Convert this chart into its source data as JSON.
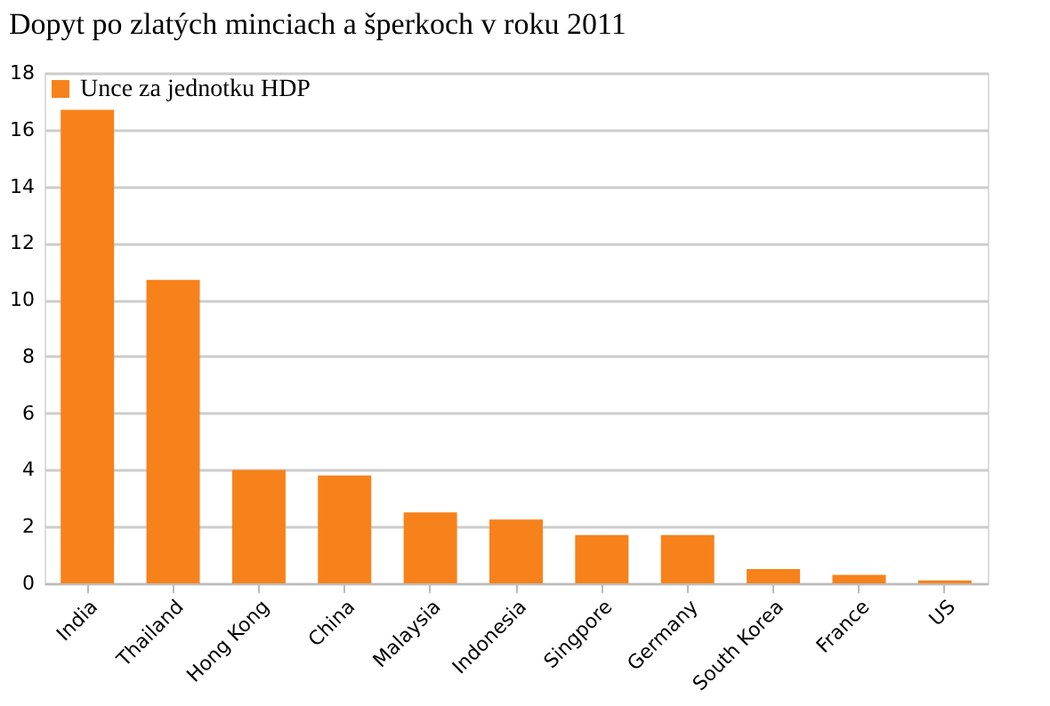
{
  "chart_data": {
    "type": "bar",
    "title": "Dopyt po zlatých minciach a šperkoch v roku 2011",
    "categories": [
      "India",
      "Thailand",
      "Hong Kong",
      "China",
      "Malaysia",
      "Indonesia",
      "Singpore",
      "Germany",
      "South Korea",
      "France",
      "US"
    ],
    "series": [
      {
        "name": "Unce za jednotku HDP",
        "color": "#f7821b",
        "values": [
          16.7,
          10.7,
          4.0,
          3.8,
          2.5,
          2.25,
          1.7,
          1.7,
          0.5,
          0.3,
          0.1
        ]
      }
    ],
    "ylim": [
      0,
      18
    ],
    "yticks": [
      0,
      2,
      4,
      6,
      8,
      10,
      12,
      14,
      16,
      18
    ],
    "grid": "y",
    "legend": "top left"
  }
}
